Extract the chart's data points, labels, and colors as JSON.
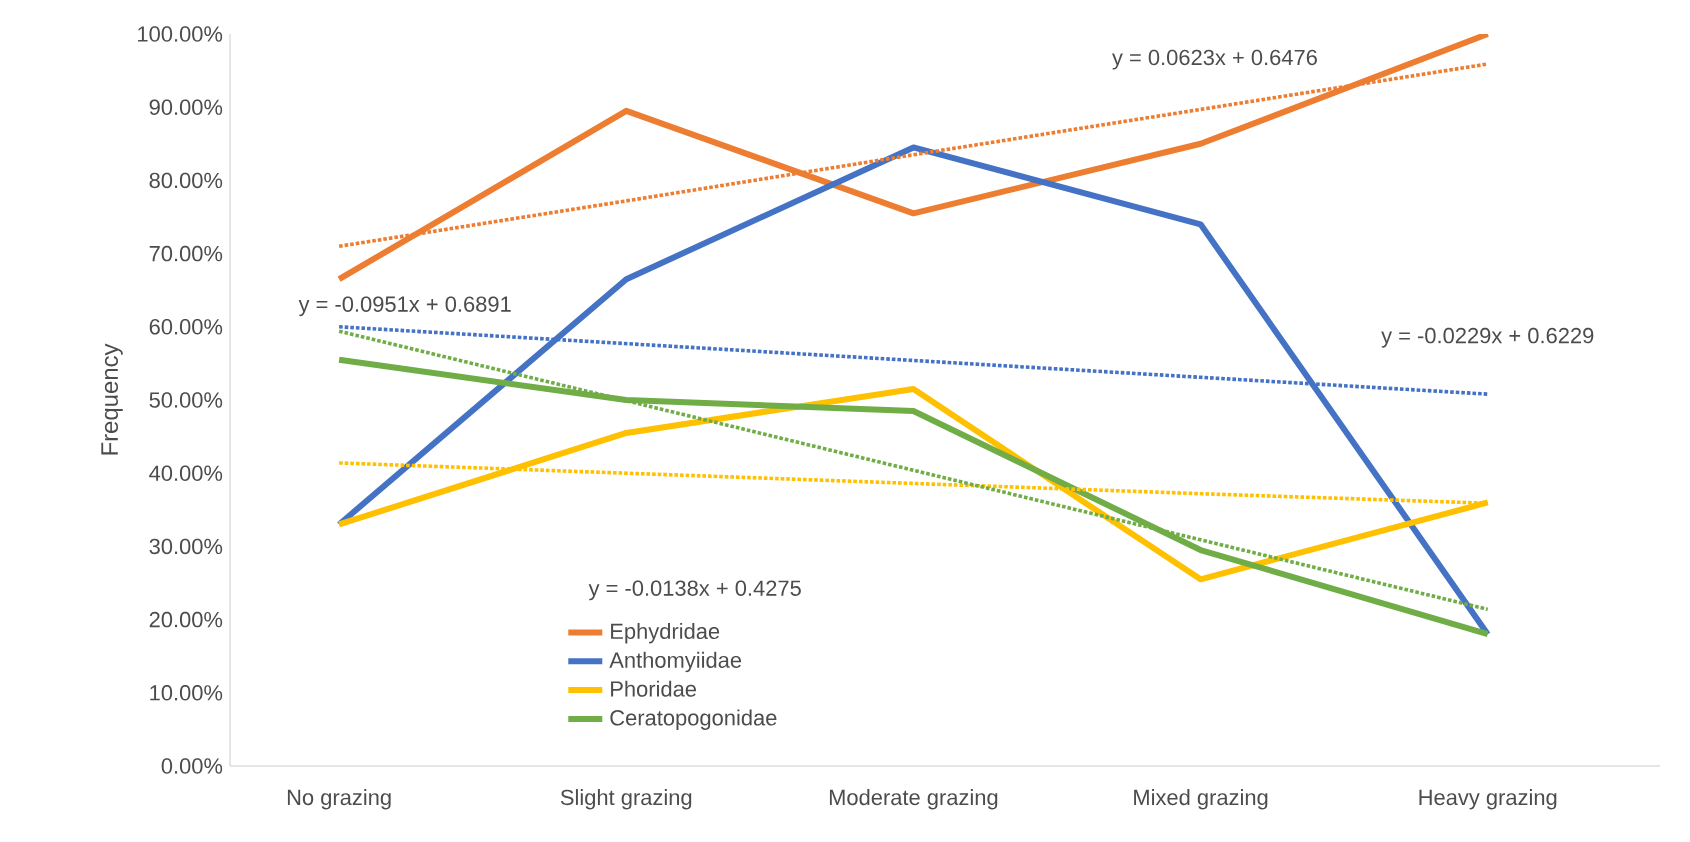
{
  "chart_data": {
    "type": "line",
    "ylabel": "Frequency",
    "categories": [
      "No grazing",
      "Slight grazing",
      "Moderate grazing",
      "Mixed grazing",
      "Heavy grazing"
    ],
    "ylim": [
      0,
      1
    ],
    "yticks": [
      {
        "value": 0,
        "label": "0.00%"
      },
      {
        "value": 0.1,
        "label": "10.00%"
      },
      {
        "value": 0.2,
        "label": "20.00%"
      },
      {
        "value": 0.3,
        "label": "30.00%"
      },
      {
        "value": 0.4,
        "label": "40.00%"
      },
      {
        "value": 0.5,
        "label": "50.00%"
      },
      {
        "value": 0.6,
        "label": "60.00%"
      },
      {
        "value": 0.7,
        "label": "70.00%"
      },
      {
        "value": 0.8,
        "label": "80.00%"
      },
      {
        "value": 0.9,
        "label": "90.00%"
      },
      {
        "value": 1,
        "label": "100.00%"
      }
    ],
    "series": [
      {
        "name": "Ephydridae",
        "color": "#ed7d31",
        "line_style": "solid",
        "values": [
          0.665,
          0.895,
          0.755,
          0.85,
          1.0
        ]
      },
      {
        "name": "Anthomyiidae",
        "color": "#4472c4",
        "line_style": "solid",
        "values": [
          0.33,
          0.665,
          0.845,
          0.74,
          0.18
        ]
      },
      {
        "name": "Phoridae",
        "color": "#ffc000",
        "line_style": "solid",
        "values": [
          0.33,
          0.455,
          0.515,
          0.255,
          0.36
        ]
      },
      {
        "name": "Ceratopogonidae",
        "color": "#70ad47",
        "line_style": "solid",
        "values": [
          0.555,
          0.5,
          0.485,
          0.295,
          0.18
        ]
      },
      {
        "color": "#ed7d31",
        "line_style": "dotted",
        "values": [
          0.71,
          0.772,
          0.835,
          0.897,
          0.959
        ]
      },
      {
        "color": "#4472c4",
        "line_style": "dotted",
        "values": [
          0.6,
          0.577,
          0.554,
          0.531,
          0.508
        ]
      },
      {
        "color": "#ffc000",
        "line_style": "dotted",
        "values": [
          0.414,
          0.4,
          0.386,
          0.372,
          0.359
        ]
      },
      {
        "color": "#70ad47",
        "line_style": "dotted",
        "values": [
          0.594,
          0.499,
          0.404,
          0.309,
          0.214
        ]
      }
    ],
    "annotations": [
      "y = 0.0623x + 0.6476",
      "y = -0.0229x + 0.6229",
      "y = -0.0951x + 0.6891",
      "y = -0.0138x + 0.4275"
    ],
    "legend": "bottom",
    "marker": "none",
    "grid": false
  }
}
